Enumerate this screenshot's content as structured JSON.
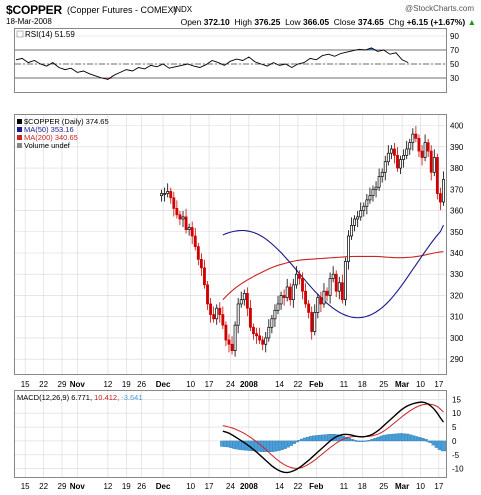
{
  "header": {
    "symbol": "$COPPER",
    "description": "(Copper Futures - COMEX)",
    "exchange": "INDX",
    "watermark": "@StockCharts.com",
    "date": "18-Mar-2008",
    "open_label": "Open",
    "open": "372.10",
    "high_label": "High",
    "high": "376.25",
    "low_label": "Low",
    "low": "366.05",
    "close_label": "Close",
    "close": "374.65",
    "chg_label": "Chg",
    "chg": "+6.15 (+1.67%)",
    "chg_arrow": "▲"
  },
  "colors": {
    "price_up": "#000000",
    "price_down": "#d00000",
    "ma50": "#1a1a8c",
    "ma200": "#cc2222",
    "macd": "#000000",
    "signal": "#cc2222",
    "histogram": "#4a9fd8",
    "rsi": "#000000",
    "rsi_oversold_fill": "#c04040",
    "rsi_overbought_fill": "#3a64c8",
    "grid": "#d8d8d8"
  },
  "chart_data": [
    {
      "panel": "rsi",
      "type": "line",
      "legend": "RSI(14) 51.59",
      "y_ticks": [
        30,
        50,
        70,
        90
      ],
      "ylim": [
        10,
        100
      ],
      "reference_lines": [
        30,
        50,
        70
      ],
      "x": [
        0,
        2,
        4,
        6,
        8,
        10,
        12,
        14,
        16,
        18,
        20,
        22,
        24,
        26,
        28,
        30,
        32,
        34,
        36,
        38,
        40,
        42,
        44,
        46,
        48,
        50,
        52,
        54,
        56,
        58,
        60,
        62,
        64,
        66,
        68,
        70,
        72,
        74,
        76,
        78,
        80,
        82,
        84,
        86,
        88,
        90,
        92,
        94,
        96,
        98,
        100,
        102,
        104,
        106,
        108,
        110,
        112,
        114,
        116,
        118,
        120,
        122,
        124,
        126,
        128
      ],
      "values": [
        56,
        58,
        52,
        55,
        50,
        47,
        52,
        45,
        42,
        44,
        38,
        40,
        36,
        33,
        30,
        28,
        34,
        38,
        42,
        40,
        45,
        43,
        48,
        46,
        50,
        44,
        46,
        48,
        50,
        47,
        45,
        49,
        55,
        52,
        48,
        54,
        57,
        55,
        60,
        53,
        50,
        47,
        52,
        48,
        50,
        45,
        50,
        52,
        58,
        56,
        62,
        64,
        61,
        65,
        67,
        69,
        71,
        70,
        73,
        68,
        70,
        64,
        66,
        56,
        52
      ]
    },
    {
      "panel": "price",
      "type": "candlestick",
      "legend": [
        "$COPPER (Daily) 374.65",
        "MA(50) 353.16",
        "MA(200) 340.65",
        "Volume undef"
      ],
      "y_ticks": [
        290,
        300,
        310,
        320,
        330,
        340,
        350,
        360,
        370,
        380,
        390,
        400
      ],
      "ylim": [
        283,
        405
      ],
      "x_labels": [
        {
          "x": 3,
          "text": "15"
        },
        {
          "x": 9,
          "text": "22"
        },
        {
          "x": 15,
          "text": "29"
        },
        {
          "x": 20,
          "text": "Nov"
        },
        {
          "x": 30,
          "text": "12"
        },
        {
          "x": 36,
          "text": "19"
        },
        {
          "x": 41,
          "text": "26"
        },
        {
          "x": 48,
          "text": "Dec"
        },
        {
          "x": 57,
          "text": "10"
        },
        {
          "x": 63,
          "text": "17"
        },
        {
          "x": 70,
          "text": "24"
        },
        {
          "x": 76,
          "text": "2008"
        },
        {
          "x": 86,
          "text": "14"
        },
        {
          "x": 92,
          "text": "22"
        },
        {
          "x": 98,
          "text": "Feb"
        },
        {
          "x": 107,
          "text": "11"
        },
        {
          "x": 113,
          "text": "18"
        },
        {
          "x": 120,
          "text": "25"
        },
        {
          "x": 126,
          "text": "Mar"
        },
        {
          "x": 132,
          "text": "10"
        },
        {
          "x": 138,
          "text": "17"
        }
      ],
      "close": [
        368,
        368,
        369,
        366,
        361,
        358,
        356,
        357,
        351,
        352,
        348,
        343,
        337,
        333,
        325,
        316,
        311,
        309,
        314,
        311,
        306,
        299,
        297,
        294,
        306,
        316,
        318,
        321,
        314,
        305,
        302,
        301,
        299,
        297,
        300,
        305,
        309,
        313,
        316,
        320,
        319,
        324,
        318,
        325,
        330,
        328,
        322,
        316,
        312,
        303,
        312,
        319,
        316,
        322,
        320,
        328,
        330,
        322,
        326,
        318,
        336,
        348,
        353,
        356,
        357,
        360,
        362,
        365,
        367,
        370,
        371,
        376,
        378,
        383,
        387,
        389,
        386,
        380,
        384,
        386,
        389,
        392,
        396,
        394,
        388,
        385,
        392,
        388,
        378,
        385,
        368,
        364,
        374.65
      ],
      "ma50": [
        348.5,
        349.1,
        349.6,
        350.0,
        350.3,
        350.5,
        350.6,
        350.6,
        350.4,
        350.1,
        349.7,
        349.1,
        348.4,
        347.6,
        346.6,
        345.5,
        344.3,
        343.0,
        341.6,
        340.2,
        338.6,
        337.0,
        335.4,
        333.7,
        332.0,
        330.3,
        328.6,
        326.9,
        325.2,
        323.6,
        322.0,
        320.5,
        319.0,
        317.6,
        316.3,
        315.1,
        314.0,
        313.0,
        312.1,
        311.3,
        310.7,
        310.2,
        309.8,
        309.6,
        309.5,
        309.6,
        309.8,
        310.2,
        310.7,
        311.4,
        312.2,
        313.2,
        314.3,
        315.6,
        317.0,
        318.6,
        320.3,
        322.1,
        324.0,
        326.0,
        328.1,
        330.2,
        332.3,
        334.4,
        336.5,
        338.6,
        340.7,
        342.7,
        344.7,
        346.6,
        348.4,
        350.1,
        353.16
      ],
      "ma200": [
        318.0,
        319.5,
        320.9,
        322.2,
        323.4,
        324.5,
        325.5,
        326.4,
        327.3,
        328.1,
        328.9,
        329.7,
        330.4,
        331.1,
        331.8,
        332.5,
        333.1,
        333.7,
        334.2,
        334.6,
        335.0,
        335.4,
        335.8,
        336.1,
        336.4,
        336.6,
        336.8,
        336.9,
        337.0,
        337.1,
        337.2,
        337.3,
        337.4,
        337.5,
        337.6,
        337.7,
        337.8,
        337.9,
        338.0,
        338.1,
        338.2,
        338.3,
        338.3,
        338.4,
        338.4,
        338.4,
        338.4,
        338.4,
        338.4,
        338.4,
        338.4,
        338.3,
        338.2,
        338.1,
        338.0,
        337.9,
        337.8,
        337.8,
        337.8,
        337.8,
        337.9,
        338.0,
        338.1,
        338.3,
        338.5,
        338.8,
        339.1,
        339.4,
        339.7,
        340.0,
        340.3,
        340.5,
        340.65
      ]
    },
    {
      "panel": "macd",
      "type": "line",
      "legend": {
        "name": "MACD(12,26,9)",
        "macd": "6.771",
        "signal": "10.412",
        "hist": "-3.641"
      },
      "y_ticks": [
        -10,
        -5,
        0,
        5,
        10,
        15
      ],
      "ylim": [
        -13,
        18
      ],
      "x_labels": [
        {
          "x": 3,
          "text": "15"
        },
        {
          "x": 9,
          "text": "22"
        },
        {
          "x": 15,
          "text": "29"
        },
        {
          "x": 20,
          "text": "Nov"
        },
        {
          "x": 30,
          "text": "12"
        },
        {
          "x": 36,
          "text": "19"
        },
        {
          "x": 41,
          "text": "26"
        },
        {
          "x": 48,
          "text": "Dec"
        },
        {
          "x": 57,
          "text": "10"
        },
        {
          "x": 63,
          "text": "17"
        },
        {
          "x": 70,
          "text": "24"
        },
        {
          "x": 76,
          "text": "2008"
        },
        {
          "x": 86,
          "text": "14"
        },
        {
          "x": 92,
          "text": "22"
        },
        {
          "x": 98,
          "text": "Feb"
        },
        {
          "x": 107,
          "text": "11"
        },
        {
          "x": 113,
          "text": "18"
        },
        {
          "x": 120,
          "text": "25"
        },
        {
          "x": 126,
          "text": "Mar"
        },
        {
          "x": 132,
          "text": "10"
        },
        {
          "x": 138,
          "text": "17"
        }
      ],
      "macd": [
        3.5,
        3.2,
        2.8,
        2.2,
        1.5,
        0.8,
        0.1,
        -0.6,
        -1.4,
        -2.2,
        -3.1,
        -4.0,
        -5.0,
        -6.0,
        -7.0,
        -8.0,
        -9.0,
        -9.8,
        -10.5,
        -11.0,
        -11.3,
        -11.4,
        -11.2,
        -10.8,
        -10.3,
        -9.6,
        -8.8,
        -7.9,
        -7.0,
        -6.0,
        -5.0,
        -4.0,
        -3.0,
        -2.0,
        -1.0,
        0.0,
        0.8,
        1.5,
        2.0,
        2.3,
        2.4,
        2.3,
        2.1,
        1.8,
        1.6,
        1.5,
        1.5,
        1.7,
        2.0,
        2.5,
        3.2,
        4.0,
        5.0,
        6.0,
        7.0,
        8.0,
        9.0,
        10.0,
        11.0,
        11.8,
        12.5,
        13.0,
        13.4,
        13.7,
        13.9,
        14.0,
        13.8,
        13.3,
        12.5,
        11.4,
        10.0,
        8.3,
        6.771
      ],
      "signal": [
        5.5,
        5.3,
        5.0,
        4.7,
        4.3,
        3.8,
        3.3,
        2.7,
        2.0,
        1.3,
        0.5,
        -0.3,
        -1.2,
        -2.1,
        -3.1,
        -4.1,
        -5.1,
        -6.1,
        -7.0,
        -7.8,
        -8.5,
        -9.1,
        -9.5,
        -9.8,
        -9.9,
        -9.8,
        -9.5,
        -9.0,
        -8.4,
        -7.7,
        -6.9,
        -6.0,
        -5.1,
        -4.2,
        -3.3,
        -2.4,
        -1.6,
        -0.8,
        -0.1,
        0.5,
        1.0,
        1.3,
        1.5,
        1.6,
        1.6,
        1.6,
        1.6,
        1.6,
        1.7,
        1.9,
        2.2,
        2.6,
        3.2,
        3.9,
        4.7,
        5.6,
        6.5,
        7.4,
        8.3,
        9.2,
        10.0,
        10.8,
        11.5,
        12.1,
        12.6,
        13.0,
        13.2,
        13.3,
        13.2,
        12.9,
        12.4,
        11.5,
        10.412
      ],
      "histogram": [
        -2.0,
        -2.1,
        -2.2,
        -2.5,
        -2.8,
        -3.0,
        -3.2,
        -3.3,
        -3.4,
        -3.5,
        -3.6,
        -3.7,
        -3.8,
        -3.9,
        -3.9,
        -3.9,
        -3.9,
        -3.7,
        -3.5,
        -3.2,
        -2.8,
        -2.3,
        -1.7,
        -1.0,
        -0.4,
        0.2,
        0.7,
        1.1,
        1.4,
        1.7,
        1.9,
        2.0,
        2.1,
        2.2,
        2.3,
        2.4,
        2.4,
        2.3,
        2.1,
        1.8,
        1.4,
        1.0,
        0.6,
        0.2,
        0.0,
        -0.1,
        -0.1,
        0.1,
        0.3,
        0.6,
        1.0,
        1.4,
        1.8,
        2.1,
        2.3,
        2.4,
        2.5,
        2.6,
        2.7,
        2.6,
        2.5,
        2.2,
        1.9,
        1.6,
        1.3,
        1.0,
        0.6,
        0.0,
        -0.7,
        -1.5,
        -2.4,
        -3.2,
        -3.641
      ]
    }
  ]
}
